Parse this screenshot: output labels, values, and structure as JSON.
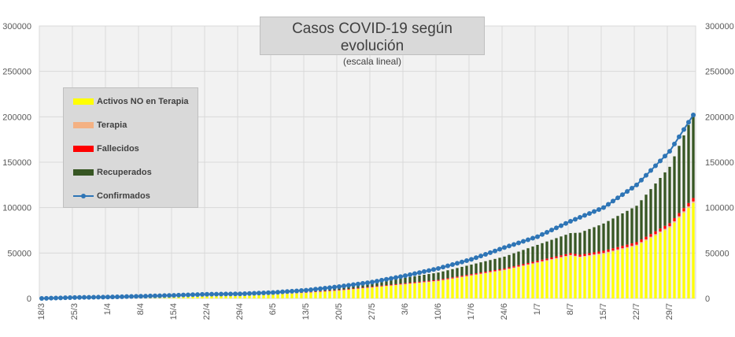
{
  "chart_data": {
    "type": "area",
    "title": "Casos COVID-19 según evolución",
    "subtitle": "(escala lineal)",
    "xlabel": "",
    "ylabel": "",
    "ylim": [
      0,
      300000
    ],
    "y_ticks": [
      0,
      50000,
      100000,
      150000,
      200000,
      250000,
      300000
    ],
    "y_tick_labels": [
      "0",
      "50000",
      "100000",
      "150000",
      "200000",
      "250000",
      "300000"
    ],
    "x_tick_labels": [
      "18/3",
      "25/3",
      "1/4",
      "8/4",
      "15/4",
      "22/4",
      "29/4",
      "6/5",
      "13/5",
      "20/5",
      "27/5",
      "3/6",
      "10/6",
      "17/6",
      "24/6",
      "1/7",
      "8/7",
      "15/7",
      "22/7",
      "29/7"
    ],
    "x_tick_every_days": 7,
    "days_count": 139,
    "grid": true,
    "legend_position": "top-left",
    "series": [
      {
        "name": "Activos NO en Terapia",
        "kind": "bar",
        "color": "#ffff00",
        "keypoints": [
          [
            0,
            0
          ],
          [
            14,
            800
          ],
          [
            28,
            1800
          ],
          [
            42,
            3000
          ],
          [
            56,
            6000
          ],
          [
            63,
            8500
          ],
          [
            70,
            12000
          ],
          [
            77,
            15500
          ],
          [
            84,
            19000
          ],
          [
            91,
            25000
          ],
          [
            98,
            31000
          ],
          [
            105,
            39000
          ],
          [
            112,
            47000
          ],
          [
            114,
            45000
          ],
          [
            119,
            49000
          ],
          [
            126,
            58000
          ],
          [
            133,
            78000
          ],
          [
            138,
            105000
          ]
        ]
      },
      {
        "name": "Terapia",
        "kind": "bar",
        "color": "#f4b183",
        "keypoints": [
          [
            0,
            0
          ],
          [
            42,
            200
          ],
          [
            70,
            300
          ],
          [
            98,
            700
          ],
          [
            126,
            1200
          ],
          [
            138,
            1800
          ]
        ]
      },
      {
        "name": "Fallecidos",
        "kind": "bar",
        "color": "#ff0000",
        "keypoints": [
          [
            0,
            0
          ],
          [
            42,
            300
          ],
          [
            70,
            700
          ],
          [
            98,
            1300
          ],
          [
            112,
            2000
          ],
          [
            126,
            2800
          ],
          [
            138,
            3800
          ]
        ]
      },
      {
        "name": "Recuperados",
        "kind": "bar",
        "color": "#375623",
        "keypoints": [
          [
            0,
            0
          ],
          [
            42,
            1200
          ],
          [
            56,
            2500
          ],
          [
            70,
            4000
          ],
          [
            84,
            8000
          ],
          [
            98,
            13000
          ],
          [
            105,
            17500
          ],
          [
            112,
            22000
          ],
          [
            119,
            30000
          ],
          [
            126,
            40000
          ],
          [
            133,
            62000
          ],
          [
            138,
            92000
          ]
        ]
      },
      {
        "name": "Confirmados",
        "kind": "line",
        "color": "#2e75b6",
        "keypoints": [
          [
            0,
            0
          ],
          [
            7,
            1000
          ],
          [
            14,
            1500
          ],
          [
            21,
            2400
          ],
          [
            28,
            3400
          ],
          [
            35,
            4600
          ],
          [
            42,
            5000
          ],
          [
            49,
            6500
          ],
          [
            56,
            9000
          ],
          [
            63,
            13000
          ],
          [
            70,
            18000
          ],
          [
            77,
            25000
          ],
          [
            84,
            33000
          ],
          [
            91,
            43000
          ],
          [
            98,
            56000
          ],
          [
            105,
            68000
          ],
          [
            112,
            85000
          ],
          [
            119,
            100000
          ],
          [
            126,
            125000
          ],
          [
            133,
            162000
          ],
          [
            138,
            202000
          ]
        ]
      }
    ]
  }
}
